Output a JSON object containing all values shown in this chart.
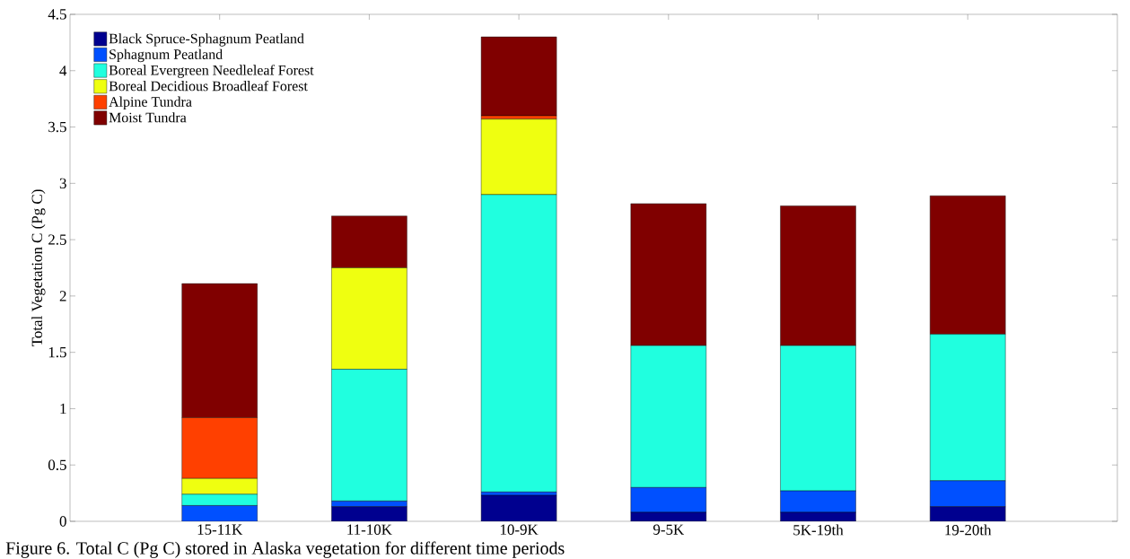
{
  "chart_data": {
    "type": "bar",
    "stacked": true,
    "ylabel": "Total Vegetation C (Pg C)",
    "categories": [
      "15-11K",
      "11-10K",
      "10-9K",
      "9-5K",
      "5K-19th",
      "19-20th"
    ],
    "series": [
      {
        "name": "Black Spruce-Sphagnum Peatland",
        "color": "#00008f",
        "values": [
          0,
          0.13,
          0.23,
          0.08,
          0.08,
          0.13
        ]
      },
      {
        "name": "Sphagnum Peatland",
        "color": "#0050ff",
        "values": [
          0.14,
          0.05,
          0.03,
          0.22,
          0.19,
          0.23
        ]
      },
      {
        "name": "Boreal Evergreen Needleleaf Forest",
        "color": "#20ffdf",
        "values": [
          0.1,
          1.17,
          2.64,
          1.26,
          1.29,
          1.3
        ]
      },
      {
        "name": "Boreal Decidious Broadleaf Forest",
        "color": "#efff10",
        "values": [
          0.14,
          0.9,
          0.67,
          0,
          0,
          0
        ]
      },
      {
        "name": "Alpine Tundra",
        "color": "#ff4000",
        "values": [
          0.54,
          0,
          0.03,
          0,
          0,
          0
        ]
      },
      {
        "name": "Moist Tundra",
        "color": "#800000",
        "values": [
          1.19,
          0.46,
          0.7,
          1.26,
          1.24,
          1.23
        ]
      }
    ],
    "ylim": [
      0,
      4.5
    ],
    "yticks": [
      0,
      0.5,
      1,
      1.5,
      2,
      2.5,
      3,
      3.5,
      4,
      4.5
    ],
    "legend": "top left",
    "grid": false,
    "annotations": [
      "Figure 6. Total C (Pg C) stored in Alaska vegetation for different time periods"
    ]
  }
}
